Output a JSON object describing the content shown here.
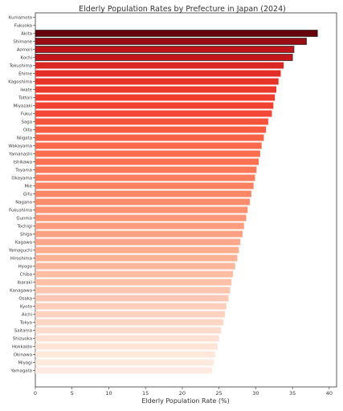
{
  "chart_data": {
    "type": "bar",
    "orientation": "horizontal",
    "title": "Elderly Population Rates by Prefecture in Japan (2024)",
    "xlabel": "Elderly Population Rate (%)",
    "ylabel": "",
    "xlim": [
      0,
      41
    ],
    "xticks": [
      0,
      5,
      10,
      15,
      20,
      25,
      30,
      35,
      40
    ],
    "grid": false,
    "colormap": "Reds",
    "categories": [
      "Kumamoto",
      "Fukuoka",
      "Akita",
      "Shimane",
      "Aomori",
      "Kochi",
      "Tokushima",
      "Ehime",
      "Kagoshima",
      "Iwate",
      "Tottori",
      "Miyazaki",
      "Fukui",
      "Saga",
      "Oita",
      "Niigata",
      "Wakayama",
      "Yamanashi",
      "Ishikawa",
      "Toyama",
      "Okayama",
      "Mie",
      "Gifu",
      "Nagano",
      "Fukushima",
      "Gunma",
      "Tochigi",
      "Shiga",
      "Kagawa",
      "Yamaguchi",
      "Hiroshima",
      "Hyogo",
      "Chiba",
      "Ibaraki",
      "Kanagawa",
      "Osaka",
      "Kyoto",
      "Aichi",
      "Tokyo",
      "Saitama",
      "Shizuoka",
      "Hokkaido",
      "Okinawa",
      "Miyagi",
      "Yamagata"
    ],
    "values": [
      null,
      null,
      38.4,
      36.9,
      35.2,
      35.0,
      33.8,
      33.4,
      33.1,
      32.8,
      32.6,
      32.4,
      32.2,
      31.7,
      31.4,
      31.1,
      30.8,
      30.6,
      30.4,
      30.1,
      29.9,
      29.7,
      29.4,
      29.2,
      28.9,
      28.7,
      28.4,
      28.2,
      27.9,
      27.7,
      27.5,
      27.2,
      26.9,
      26.7,
      26.5,
      26.3,
      26.0,
      25.8,
      25.6,
      25.3,
      25.0,
      24.8,
      24.5,
      24.3,
      24.1
    ]
  }
}
